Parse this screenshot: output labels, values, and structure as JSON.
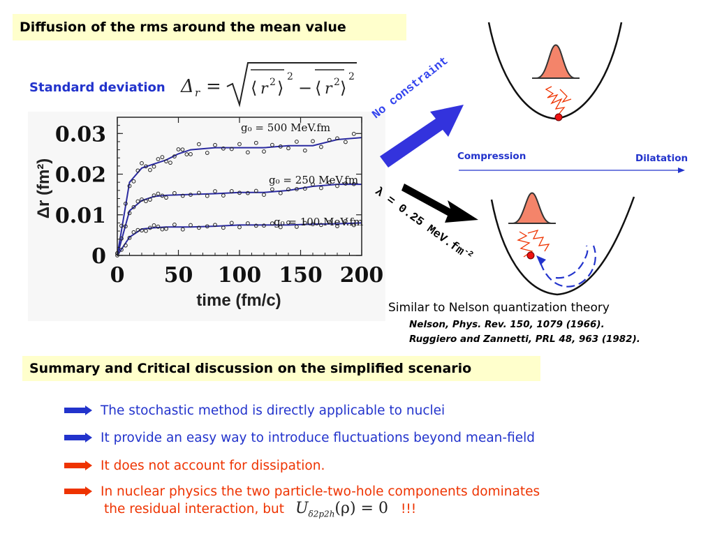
{
  "slide": {
    "title": "Diffusion of the rms around the mean value",
    "std_label": "Standard deviation",
    "formula": "Δr = √( ⟨r²⟩² − ⟨r²⟩² )",
    "section_title": "Summary and Critical discussion on the simplified scenario"
  },
  "chart_data": {
    "type": "line",
    "xlabel": "time (fm/c)",
    "ylabel": "Δr (fm²)",
    "xlim": [
      0,
      200
    ],
    "ylim": [
      0,
      0.034
    ],
    "x_ticks": [
      "0",
      "50",
      "100",
      "150",
      "200"
    ],
    "y_ticks": [
      "0",
      "0.01",
      "0.02",
      "0.03"
    ],
    "series": [
      {
        "name": "g0 = 500 MeV.fm",
        "x": [
          0,
          10,
          20,
          30,
          40,
          50,
          60,
          80,
          100,
          120,
          140,
          160,
          180,
          200
        ],
        "values": [
          0,
          0.018,
          0.0215,
          0.0225,
          0.0235,
          0.025,
          0.026,
          0.0265,
          0.0265,
          0.0265,
          0.027,
          0.027,
          0.0285,
          0.029
        ]
      },
      {
        "name": "g0 = 250 MeV.fm",
        "x": [
          0,
          10,
          20,
          30,
          40,
          60,
          80,
          100,
          120,
          140,
          160,
          180,
          200
        ],
        "values": [
          0,
          0.011,
          0.0135,
          0.0145,
          0.0148,
          0.015,
          0.0152,
          0.0155,
          0.0155,
          0.016,
          0.017,
          0.0175,
          0.0175
        ]
      },
      {
        "name": "g0 = 100 MeV.fm",
        "x": [
          0,
          10,
          20,
          30,
          40,
          60,
          80,
          100,
          120,
          140,
          160,
          180,
          200
        ],
        "values": [
          0,
          0.0045,
          0.0065,
          0.0068,
          0.007,
          0.007,
          0.0072,
          0.0075,
          0.0075,
          0.0075,
          0.0077,
          0.0078,
          0.008
        ]
      }
    ],
    "series_labels": [
      "g₀ = 500 MeV.fm",
      "g₀ = 250 MeV.fm",
      "g₀ = 100 MeV.fm"
    ]
  },
  "diagram": {
    "no_constraint": "No constraint",
    "lambda_label": "λ = 0.25 MeV.fm",
    "lambda_exp": "-2",
    "compression": "Compression",
    "dilatation": "Dilatation"
  },
  "reference": {
    "main": "Similar to Nelson quantization theory",
    "ref1": "Nelson, Phys. Rev. 150, 1079 (1966).",
    "ref2": "Ruggiero and Zannetti, PRL 48, 963 (1982)."
  },
  "bullets": [
    {
      "text": "The stochastic method is directly applicable to nuclei",
      "color": "#2233cc"
    },
    {
      "text": "It provide an easy way to introduce fluctuations beyond mean-field",
      "color": "#2233cc"
    },
    {
      "text": "It does not account for dissipation.",
      "color": "#ee3300"
    },
    {
      "text": "In nuclear physics the two particle-two-hole components dominates",
      "color": "#ee3300"
    }
  ],
  "bullet4_line2": "the residual interaction, but",
  "bullet4_formula": "U",
  "bullet4_sub": "δ2p2h",
  "bullet4_formula_rest": "(ρ) = 0",
  "bullet4_end": "!!!"
}
